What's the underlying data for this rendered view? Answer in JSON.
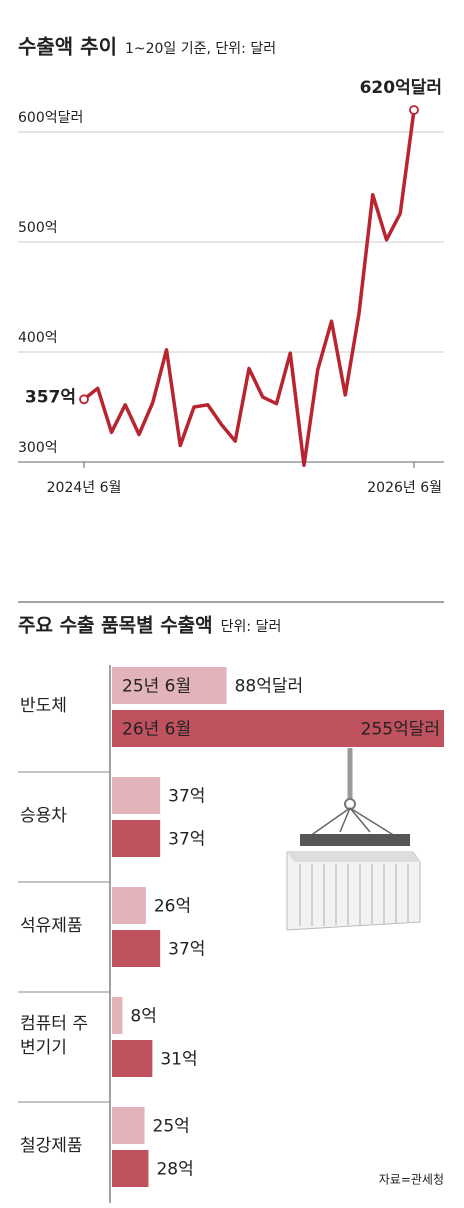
{
  "chart_data": [
    {
      "type": "line",
      "title": "수출액 추이",
      "subtitle": "1~20일 기준, 단위: 달러",
      "categories": [
        "2024년 6월",
        null,
        null,
        null,
        null,
        null,
        null,
        null,
        null,
        null,
        null,
        null,
        null,
        null,
        null,
        null,
        null,
        null,
        null,
        null,
        null,
        null,
        null,
        null,
        "2026년 6월"
      ],
      "series": [
        {
          "name": "수출액",
          "color": "#b8252f",
          "values": [
            357,
            367,
            327,
            352,
            325,
            354,
            402,
            315,
            350,
            352,
            334,
            319,
            385,
            359,
            353,
            399,
            297,
            384,
            428,
            361,
            435,
            543,
            502,
            526,
            620
          ]
        }
      ],
      "start_label": "357억",
      "end_label": "620억달러",
      "ylim": [
        300,
        620
      ],
      "yticks": [
        {
          "value": 300,
          "label": "300억"
        },
        {
          "value": 400,
          "label": "400억"
        },
        {
          "value": 500,
          "label": "500억"
        },
        {
          "value": 600,
          "label": "600억달러"
        }
      ],
      "grid": true
    },
    {
      "type": "hbar",
      "title": "주요 수출 품목별 수출액",
      "subtitle": "단위: 달러",
      "categories": [
        "반도체",
        "승용차",
        "석유제품",
        "컴퓨터 주변기기",
        "철강제품"
      ],
      "series": [
        {
          "name": "25년 6월",
          "color": "#e2b3b8",
          "values": [
            88,
            37,
            26,
            8,
            25
          ],
          "value_labels": [
            "88억달러",
            "37억",
            "26억",
            "8억",
            "25억"
          ]
        },
        {
          "name": "26년 6월",
          "color": "#c0525f",
          "values": [
            255,
            37,
            37,
            31,
            28
          ],
          "value_labels": [
            "255억달러",
            "37억",
            "37억",
            "31억",
            "28억"
          ]
        }
      ],
      "xlim": [
        0,
        255
      ],
      "source": "자료=관세청"
    }
  ]
}
